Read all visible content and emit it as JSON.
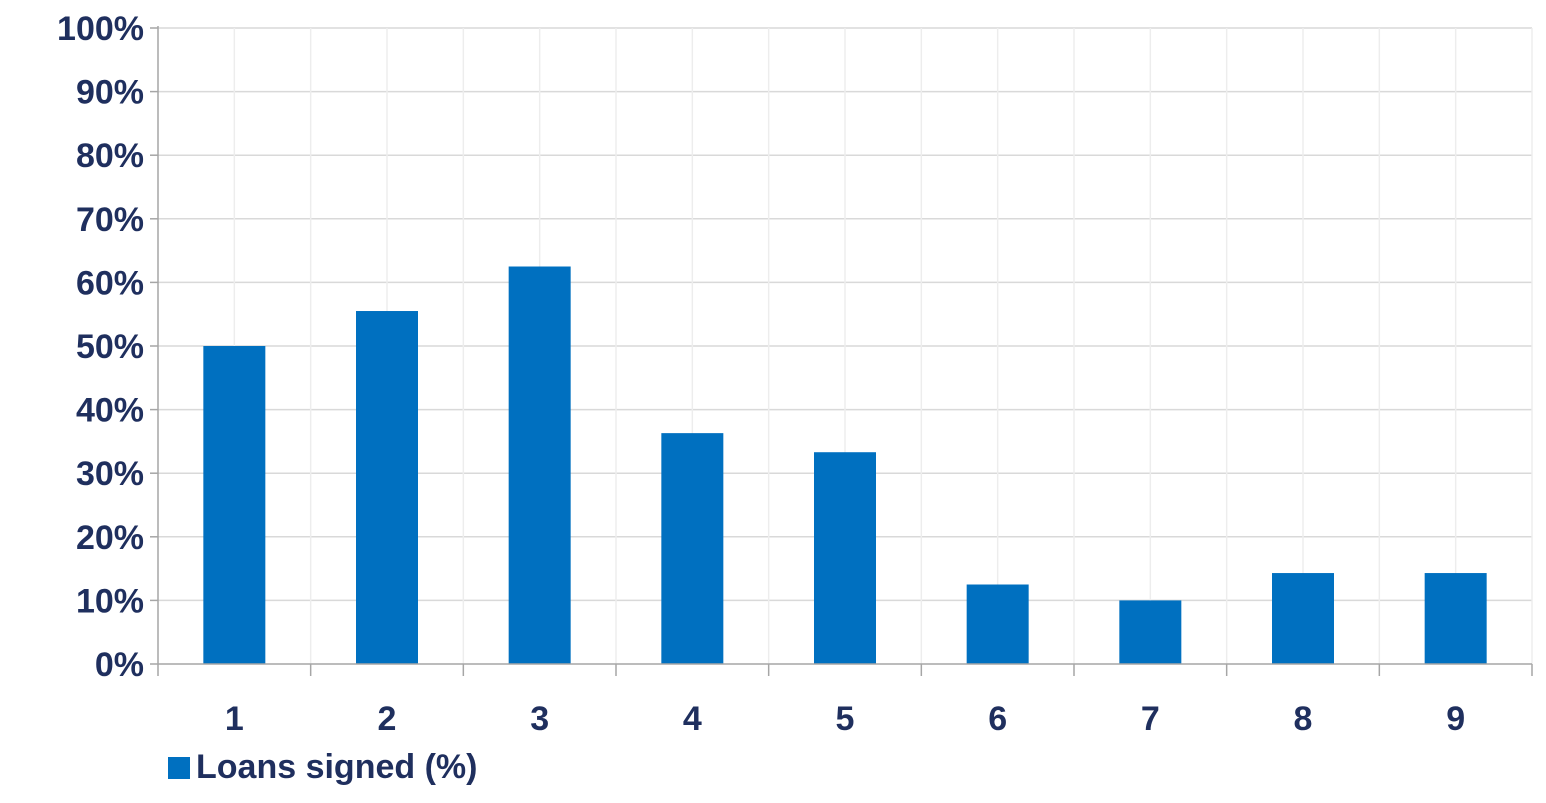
{
  "chart_data": {
    "type": "bar",
    "categories": [
      "1",
      "2",
      "3",
      "4",
      "5",
      "6",
      "7",
      "8",
      "9"
    ],
    "series": [
      {
        "name": "Loans signed (%)",
        "values": [
          50,
          55.5,
          62.5,
          36.3,
          33.3,
          12.5,
          10,
          14.3,
          14.3
        ]
      }
    ],
    "y_ticks": [
      "0%",
      "10%",
      "20%",
      "30%",
      "40%",
      "50%",
      "60%",
      "70%",
      "80%",
      "90%",
      "100%"
    ],
    "ylim": [
      0,
      100
    ],
    "xlabel": "",
    "ylabel": "",
    "title": "",
    "grid": "both",
    "legend_position": "bottom-left",
    "colors": {
      "bar": "#0070C0",
      "text": "#1F2F5E",
      "grid": "#D9D9D9",
      "axis": "#A6A6A6"
    }
  }
}
